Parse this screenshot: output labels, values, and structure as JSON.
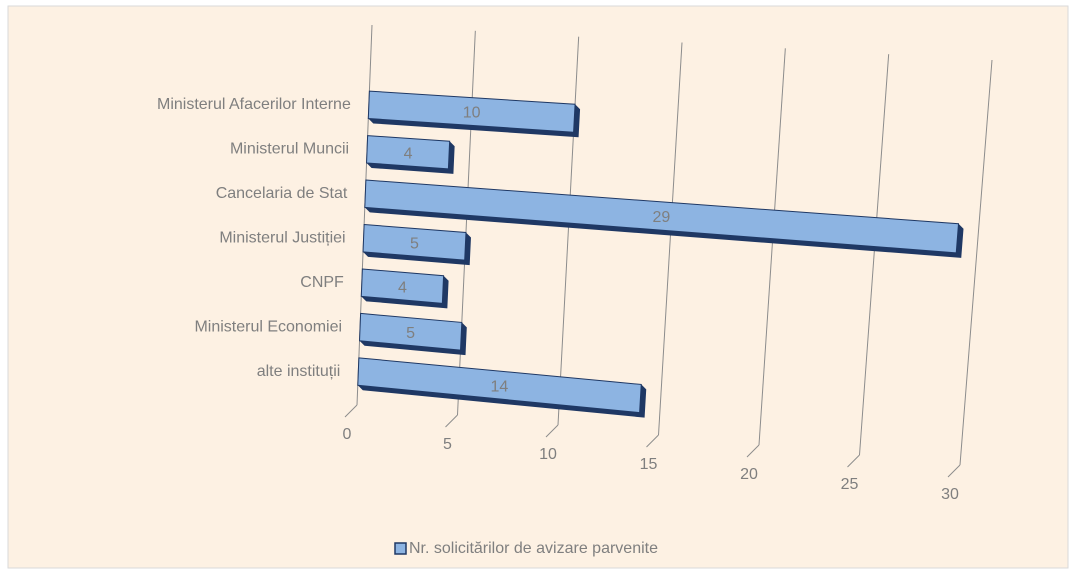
{
  "chart_data": {
    "type": "bar3d",
    "categories": [
      "Ministerul Afacerilor Interne",
      "Ministerul Muncii",
      "Cancelaria de Stat",
      "Ministerul Justiției",
      "CNPF",
      "Ministerul Economiei",
      "alte instituții"
    ],
    "series": [
      {
        "name": "Nr. solicitărilor de avizare parvenite",
        "color": "#8db4e2",
        "values": [
          10,
          4,
          29,
          5,
          4,
          5,
          14
        ]
      }
    ],
    "xlim": [
      0,
      30
    ],
    "xticks": [
      0,
      5,
      10,
      15,
      20,
      25,
      30
    ],
    "grid": true,
    "legend": "bottom"
  }
}
